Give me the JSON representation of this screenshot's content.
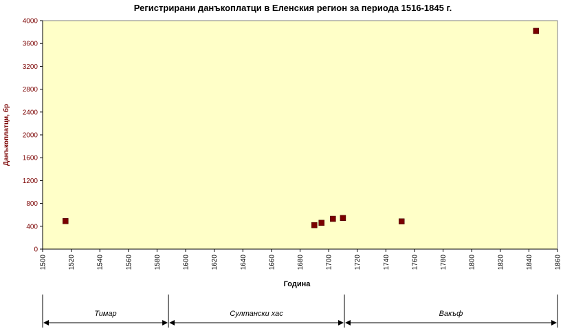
{
  "chart_data": {
    "type": "scatter",
    "title": "Регистрирани данъкоплатци в Еленския регион за периода 1516-1845 г.",
    "xlabel": "Година",
    "ylabel": "Данъкоплатци, бр",
    "xlim": [
      1500,
      1860
    ],
    "ylim": [
      0,
      4000
    ],
    "x_ticks": [
      1500,
      1520,
      1540,
      1560,
      1580,
      1600,
      1620,
      1640,
      1660,
      1680,
      1700,
      1720,
      1740,
      1760,
      1780,
      1800,
      1820,
      1840,
      1860
    ],
    "y_ticks": [
      0,
      400,
      800,
      1200,
      1600,
      2000,
      2400,
      2800,
      3200,
      3600,
      4000
    ],
    "grid": false,
    "legend": "none",
    "colors": {
      "plot_background": "#ffffc8",
      "marker": "#7a0000",
      "axis_text": "#7a0000"
    },
    "points": [
      {
        "x": 1516,
        "y": 490
      },
      {
        "x": 1690,
        "y": 420
      },
      {
        "x": 1695,
        "y": 460
      },
      {
        "x": 1703,
        "y": 530
      },
      {
        "x": 1710,
        "y": 545
      },
      {
        "x": 1751,
        "y": 485
      },
      {
        "x": 1845,
        "y": 3820
      }
    ],
    "periods": [
      {
        "label": "Тимар",
        "start": 1500,
        "end": 1588
      },
      {
        "label": "Султански хас",
        "start": 1588,
        "end": 1711
      },
      {
        "label": "Вакъф",
        "start": 1711,
        "end": 1860
      }
    ]
  }
}
